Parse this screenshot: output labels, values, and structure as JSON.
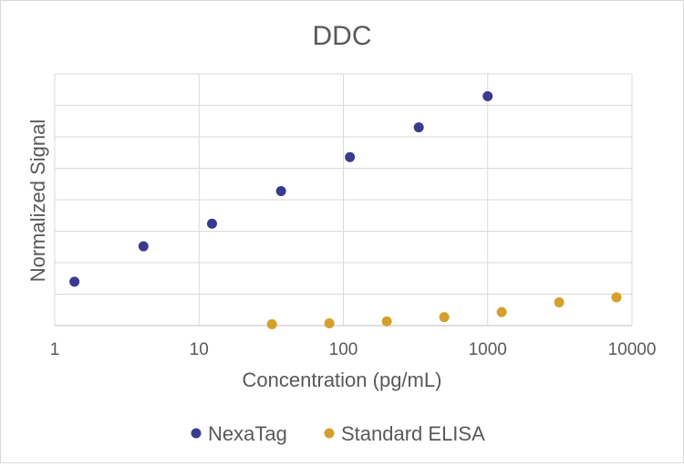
{
  "chart_data": {
    "type": "scatter",
    "title": "DDC",
    "xlabel": "Concentration (pg/mL)",
    "ylabel": "Normalized Signal",
    "x_scale": "log",
    "xlim": [
      1,
      10000
    ],
    "ylim": [
      0,
      8
    ],
    "grid": true,
    "legend_position": "bottom",
    "x_ticks": [
      "1",
      "10",
      "100",
      "1000",
      "10000"
    ],
    "series": [
      {
        "name": "NexaTag",
        "color": "#3a3b8f",
        "points": [
          {
            "x": 1.37,
            "y": 1.55
          },
          {
            "x": 4.12,
            "y": 2.8
          },
          {
            "x": 12.3,
            "y": 3.6
          },
          {
            "x": 37.0,
            "y": 4.75
          },
          {
            "x": 111,
            "y": 5.95
          },
          {
            "x": 333,
            "y": 7.0
          },
          {
            "x": 1000,
            "y": 8.1
          }
        ]
      },
      {
        "name": "Standard ELISA",
        "color": "#d4a02c",
        "points": [
          {
            "x": 32,
            "y": 0.05
          },
          {
            "x": 80,
            "y": 0.08
          },
          {
            "x": 200,
            "y": 0.15
          },
          {
            "x": 500,
            "y": 0.3
          },
          {
            "x": 1250,
            "y": 0.48
          },
          {
            "x": 3125,
            "y": 0.82
          },
          {
            "x": 7800,
            "y": 1.0
          }
        ]
      }
    ]
  }
}
